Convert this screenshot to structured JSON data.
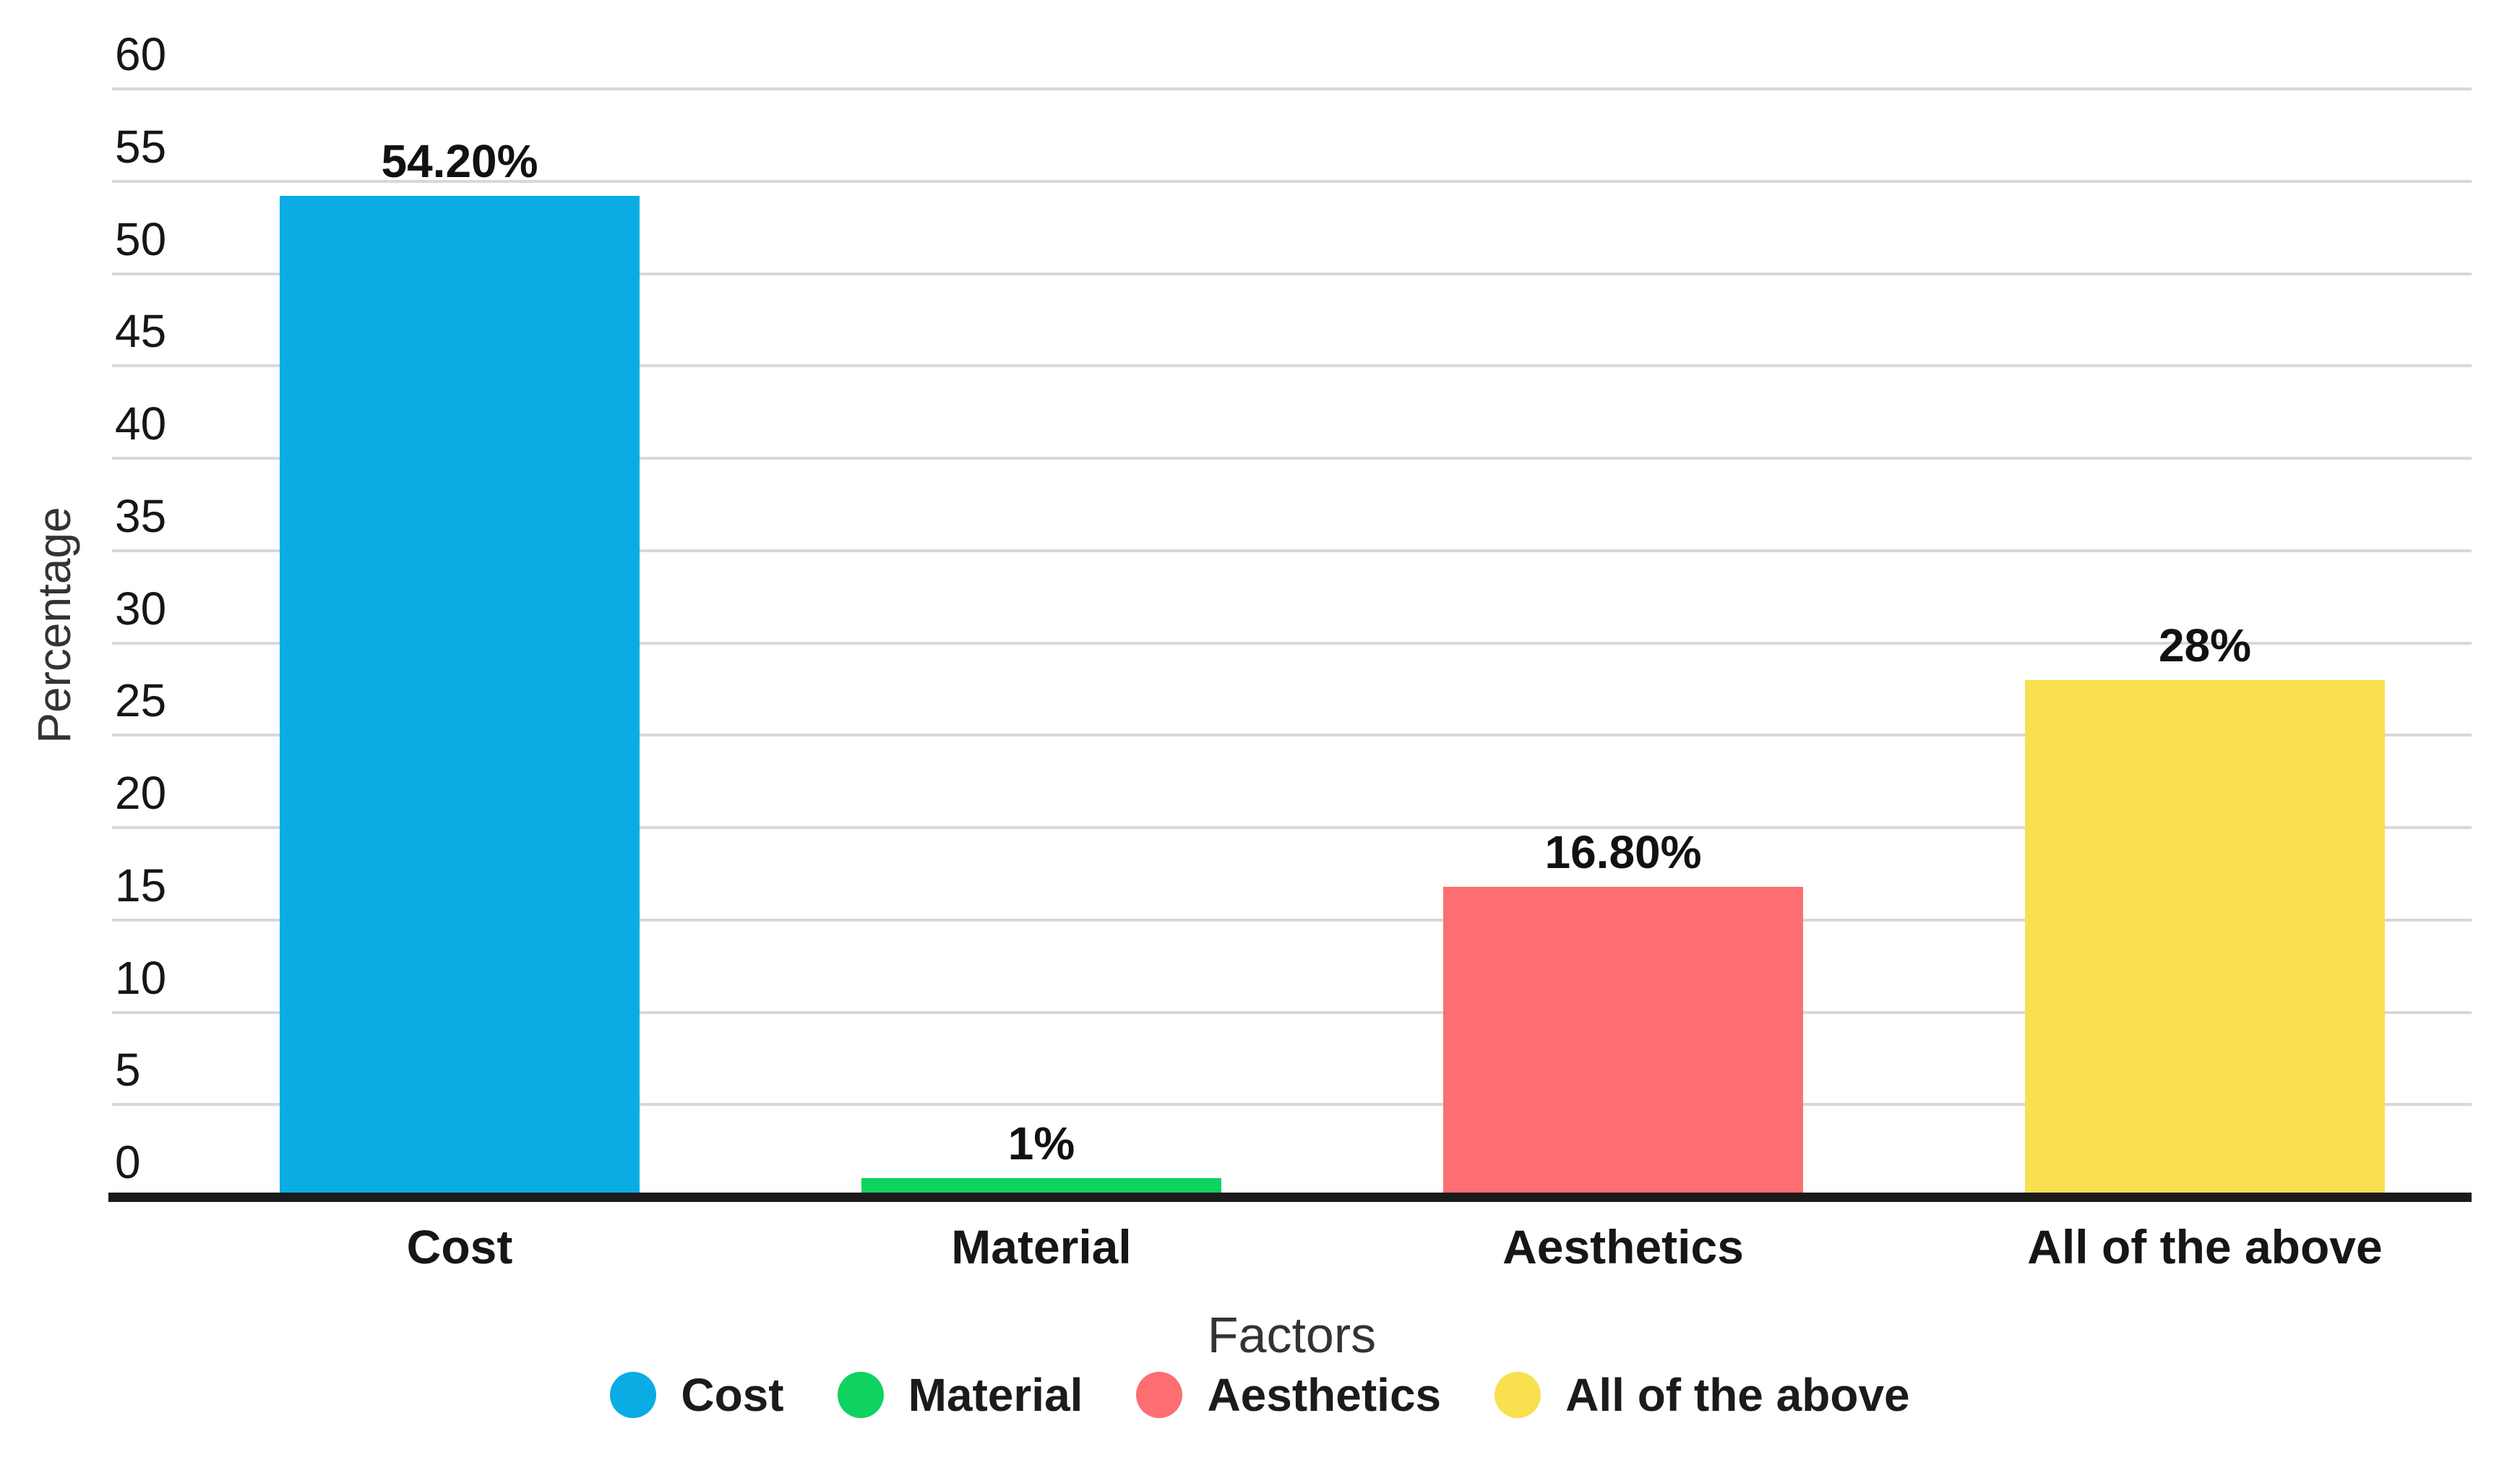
{
  "chart_data": {
    "type": "bar",
    "title": "",
    "xlabel": "Factors",
    "ylabel": "Percentage",
    "ylim": [
      0,
      60
    ],
    "ytick_step": 5,
    "yticks": [
      0,
      5,
      10,
      15,
      20,
      25,
      30,
      35,
      40,
      45,
      50,
      55,
      60
    ],
    "categories": [
      "Cost",
      "Material",
      "Aesthetics",
      "All of the above"
    ],
    "values": [
      54.2,
      1,
      16.8,
      28
    ],
    "value_labels": [
      "54.20%",
      "1%",
      "16.80%",
      "28%"
    ],
    "colors": [
      "#09ADE4",
      "#0FD261",
      "#FC6E72",
      "#F9E04E"
    ],
    "grid": true,
    "grid_color": "#D8D8D8",
    "axis_color": "#1B1B1B",
    "legend_position": "bottom",
    "legend": [
      {
        "label": "Cost",
        "color": "#09ADE4"
      },
      {
        "label": "Material",
        "color": "#0FD261"
      },
      {
        "label": "Aesthetics",
        "color": "#FC6E72"
      },
      {
        "label": "All of the above",
        "color": "#F9E04E"
      }
    ]
  }
}
